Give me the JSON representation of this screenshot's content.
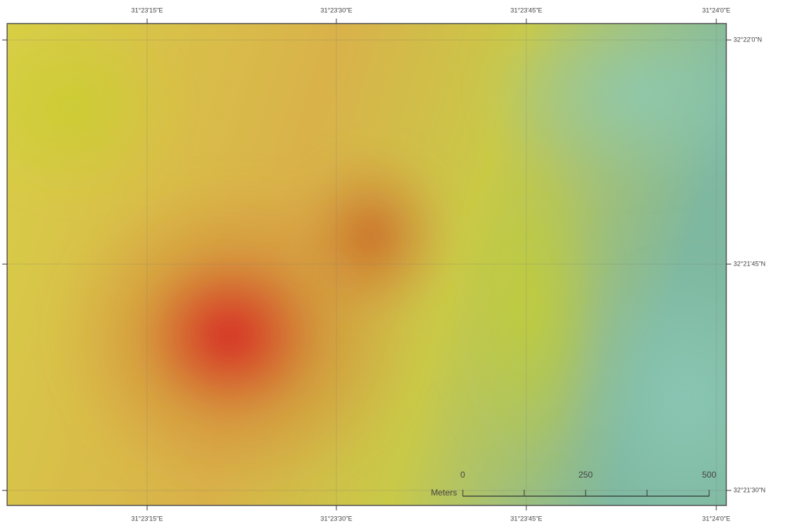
{
  "map": {
    "top_labels": [
      "31°23'15\"E",
      "31°23'30\"E",
      "31°23'45\"E",
      "31°24'0\"E"
    ],
    "bottom_labels": [
      "31°23'15\"E",
      "31°23'30\"E",
      "31°23'45\"E",
      "31°24'0\"E"
    ],
    "right_labels": [
      "32°22'0\"N",
      "32°21'45\"N",
      "32°21'30\"N"
    ],
    "scale_bar": {
      "unit": "Meters",
      "labels": [
        0,
        250,
        500
      ]
    }
  }
}
